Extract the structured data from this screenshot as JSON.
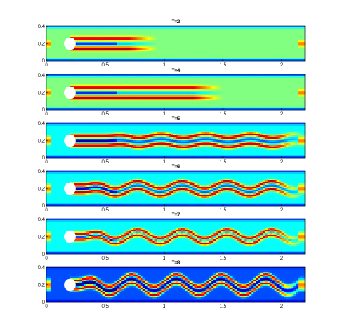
{
  "chart_data": [
    {
      "type": "heatmap",
      "title": "T=2",
      "x_ticks": [
        "0",
        "0.5",
        "1",
        "1.5",
        "2"
      ],
      "y_ticks": [
        "0",
        "0.2",
        "0.4"
      ],
      "xlim": [
        0,
        2.2
      ],
      "ylim": [
        0,
        0.41
      ],
      "colormap": "jet",
      "obstacle": {
        "center_x": 0.2,
        "center_y": 0.2,
        "radius": 0.05
      },
      "field": {
        "wake_length": 0.95,
        "band_offset": 0.06,
        "meander_amplitude": 0.0,
        "meander_onset": 1.0,
        "background": "green"
      }
    },
    {
      "type": "heatmap",
      "title": "T=4",
      "x_ticks": [
        "0",
        "0.5",
        "1",
        "1.5",
        "2"
      ],
      "y_ticks": [
        "0",
        "0.2",
        "0.4"
      ],
      "xlim": [
        0,
        2.2
      ],
      "ylim": [
        0,
        0.41
      ],
      "colormap": "jet",
      "obstacle": {
        "center_x": 0.2,
        "center_y": 0.2,
        "radius": 0.05
      },
      "field": {
        "wake_length": 1.5,
        "band_offset": 0.06,
        "meander_amplitude": 0.0,
        "meander_onset": 1.0,
        "background": "green"
      }
    },
    {
      "type": "heatmap",
      "title": "T=5",
      "x_ticks": [
        "0",
        "0.5",
        "1",
        "1.5",
        "2"
      ],
      "y_ticks": [
        "0",
        "0.2",
        "0.4"
      ],
      "xlim": [
        0,
        2.2
      ],
      "ylim": [
        0,
        0.41
      ],
      "colormap": "jet",
      "obstacle": {
        "center_x": 0.2,
        "center_y": 0.2,
        "radius": 0.05
      },
      "field": {
        "wake_length": 2.2,
        "band_offset": 0.055,
        "meander_amplitude": 0.02,
        "meander_onset": 0.5,
        "background": "cyan"
      }
    },
    {
      "type": "heatmap",
      "title": "T=6",
      "x_ticks": [
        "0",
        "0.5",
        "1",
        "1.5",
        "2"
      ],
      "y_ticks": [
        "0",
        "0.2",
        "0.4"
      ],
      "xlim": [
        0,
        2.2
      ],
      "ylim": [
        0,
        0.41
      ],
      "colormap": "jet",
      "obstacle": {
        "center_x": 0.2,
        "center_y": 0.2,
        "radius": 0.05
      },
      "field": {
        "wake_length": 2.2,
        "band_offset": 0.045,
        "meander_amplitude": 0.04,
        "meander_onset": 0.3,
        "background": "cyan"
      }
    },
    {
      "type": "heatmap",
      "title": "T=7",
      "x_ticks": [
        "0",
        "0.5",
        "1",
        "1.5",
        "2"
      ],
      "y_ticks": [
        "0",
        "0.2",
        "0.4"
      ],
      "xlim": [
        0,
        2.2
      ],
      "ylim": [
        0,
        0.41
      ],
      "colormap": "jet",
      "obstacle": {
        "center_x": 0.2,
        "center_y": 0.2,
        "radius": 0.05
      },
      "field": {
        "wake_length": 2.2,
        "band_offset": 0.03,
        "meander_amplitude": 0.05,
        "meander_onset": 0.3,
        "background": "cyan"
      }
    },
    {
      "type": "heatmap",
      "title": "T=8",
      "x_ticks": [
        "0",
        "0.5",
        "1",
        "1.5",
        "2"
      ],
      "y_ticks": [
        "0",
        "0.2",
        "0.4"
      ],
      "xlim": [
        0,
        2.2
      ],
      "ylim": [
        0,
        0.41
      ],
      "colormap": "jet",
      "obstacle": {
        "center_x": 0.2,
        "center_y": 0.2,
        "radius": 0.05
      },
      "field": {
        "wake_length": 2.2,
        "band_offset": 0.05,
        "meander_amplitude": 0.07,
        "meander_onset": 0.25,
        "background": "blue"
      }
    }
  ]
}
